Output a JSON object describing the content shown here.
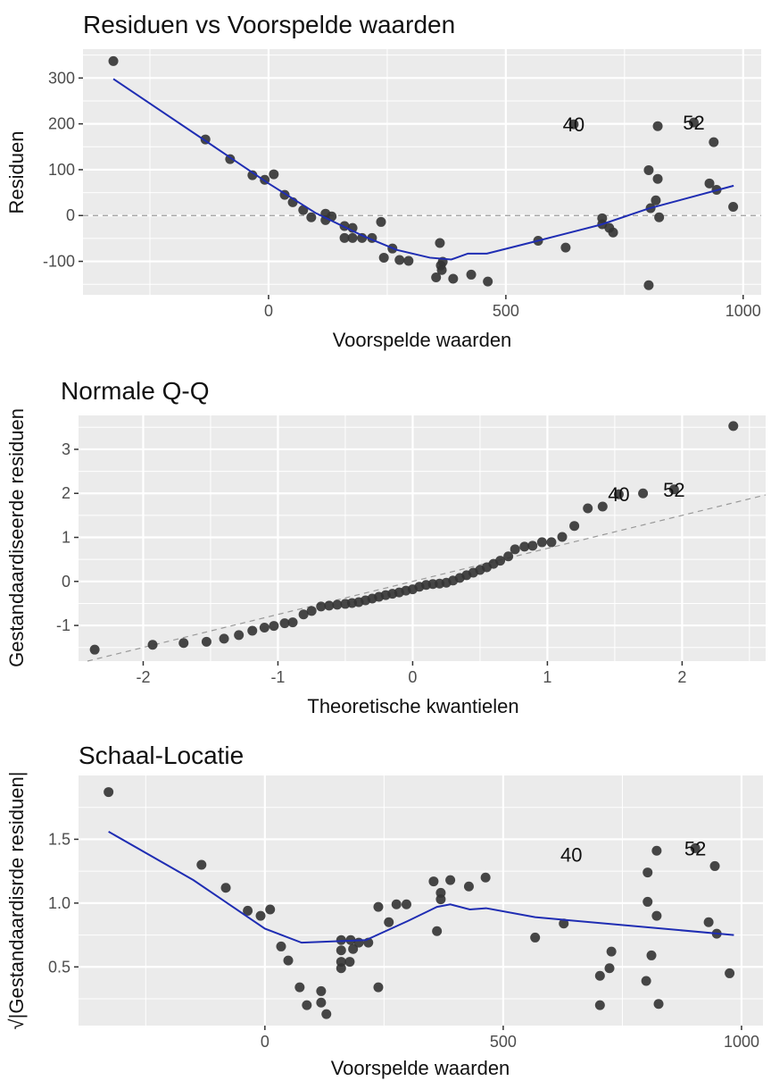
{
  "chart_data": [
    {
      "type": "scatter",
      "title": "Residuen vs Voorspelde waarden",
      "xlabel": "Voorspelde waarden",
      "ylabel": "Residuen",
      "xlim": [
        -391,
        1038
      ],
      "ylim": [
        -173,
        363
      ],
      "xticks": [
        0,
        500,
        1000
      ],
      "xtick_labels": [
        "0",
        "500",
        "1000"
      ],
      "yticks": [
        -100,
        0,
        100,
        200,
        300
      ],
      "ytick_labels": [
        "-100",
        "0",
        "100",
        "200",
        "300"
      ],
      "grid": true,
      "hline": {
        "y": 0,
        "style": "dashed"
      },
      "points": [
        [
          -327,
          337
        ],
        [
          -133,
          166
        ],
        [
          -81,
          123
        ],
        [
          -34,
          88
        ],
        [
          -8,
          78
        ],
        [
          11,
          90
        ],
        [
          34,
          45
        ],
        [
          51,
          29
        ],
        [
          73,
          12
        ],
        [
          90,
          -4
        ],
        [
          120,
          4
        ],
        [
          120,
          -10
        ],
        [
          133,
          -2
        ],
        [
          160,
          -23
        ],
        [
          160,
          -49
        ],
        [
          177,
          -27
        ],
        [
          177,
          -49
        ],
        [
          197,
          -49
        ],
        [
          218,
          -49
        ],
        [
          237,
          -14
        ],
        [
          243,
          -92
        ],
        [
          261,
          -72
        ],
        [
          276,
          -97
        ],
        [
          295,
          -99
        ],
        [
          353,
          -135
        ],
        [
          361,
          -60
        ],
        [
          363,
          -109
        ],
        [
          365,
          -119
        ],
        [
          367,
          -101
        ],
        [
          389,
          -138
        ],
        [
          427,
          -129
        ],
        [
          462,
          -144
        ],
        [
          568,
          -55
        ],
        [
          626,
          -70
        ],
        [
          643,
          199
        ],
        [
          703,
          -6
        ],
        [
          703,
          -19
        ],
        [
          718,
          -27
        ],
        [
          726,
          -37
        ],
        [
          801,
          99
        ],
        [
          801,
          -152
        ],
        [
          805,
          16
        ],
        [
          816,
          33
        ],
        [
          820,
          80
        ],
        [
          820,
          195
        ],
        [
          823,
          -4
        ],
        [
          896,
          203
        ],
        [
          929,
          70
        ],
        [
          938,
          160
        ],
        [
          944,
          56
        ],
        [
          979,
          19
        ]
      ],
      "smooth": [
        [
          -327,
          298
        ],
        [
          -133,
          163
        ],
        [
          0,
          70
        ],
        [
          100,
          5
        ],
        [
          200,
          -45
        ],
        [
          270,
          -75
        ],
        [
          340,
          -92
        ],
        [
          385,
          -96
        ],
        [
          420,
          -83
        ],
        [
          460,
          -83
        ],
        [
          560,
          -57
        ],
        [
          700,
          -20
        ],
        [
          800,
          15
        ],
        [
          980,
          65
        ]
      ],
      "annotations": [
        {
          "text": "40",
          "x": 643,
          "y": 199
        },
        {
          "text": "52",
          "x": 896,
          "y": 203
        }
      ]
    },
    {
      "type": "scatter",
      "title": "Normale Q-Q",
      "xlabel": "Theoretische kwantielen",
      "ylabel": "Gestandaardiseerde residuen",
      "xlim": [
        -2.48,
        2.62
      ],
      "ylim": [
        -1.81,
        3.77
      ],
      "xticks": [
        -2,
        -1,
        0,
        1,
        2
      ],
      "xtick_labels": [
        "-2",
        "-1",
        "0",
        "1",
        "2"
      ],
      "yticks": [
        -1,
        0,
        1,
        2,
        3
      ],
      "ytick_labels": [
        "-1",
        "0",
        "1",
        "2",
        "3"
      ],
      "grid": true,
      "refline": {
        "slope": 0.75,
        "intercept": 0,
        "style": "dashed"
      },
      "points": [
        [
          -2.36,
          -1.55
        ],
        [
          -1.93,
          -1.44
        ],
        [
          -1.7,
          -1.4
        ],
        [
          -1.53,
          -1.37
        ],
        [
          -1.4,
          -1.3
        ],
        [
          -1.29,
          -1.22
        ],
        [
          -1.19,
          -1.12
        ],
        [
          -1.1,
          -1.05
        ],
        [
          -1.03,
          -1.01
        ],
        [
          -0.95,
          -0.95
        ],
        [
          -0.89,
          -0.93
        ],
        [
          -0.81,
          -0.75
        ],
        [
          -0.75,
          -0.67
        ],
        [
          -0.68,
          -0.57
        ],
        [
          -0.62,
          -0.55
        ],
        [
          -0.56,
          -0.53
        ],
        [
          -0.5,
          -0.51
        ],
        [
          -0.45,
          -0.49
        ],
        [
          -0.4,
          -0.47
        ],
        [
          -0.35,
          -0.43
        ],
        [
          -0.3,
          -0.39
        ],
        [
          -0.25,
          -0.35
        ],
        [
          -0.2,
          -0.31
        ],
        [
          -0.15,
          -0.28
        ],
        [
          -0.1,
          -0.25
        ],
        [
          -0.05,
          -0.21
        ],
        [
          0.0,
          -0.18
        ],
        [
          0.05,
          -0.12
        ],
        [
          0.1,
          -0.08
        ],
        [
          0.15,
          -0.06
        ],
        [
          0.2,
          -0.05
        ],
        [
          0.25,
          -0.03
        ],
        [
          0.3,
          0.02
        ],
        [
          0.35,
          0.08
        ],
        [
          0.4,
          0.14
        ],
        [
          0.45,
          0.2
        ],
        [
          0.5,
          0.26
        ],
        [
          0.55,
          0.32
        ],
        [
          0.6,
          0.4
        ],
        [
          0.65,
          0.47
        ],
        [
          0.71,
          0.57
        ],
        [
          0.76,
          0.73
        ],
        [
          0.83,
          0.79
        ],
        [
          0.89,
          0.81
        ],
        [
          0.96,
          0.89
        ],
        [
          1.03,
          0.89
        ],
        [
          1.11,
          1.01
        ],
        [
          1.2,
          1.26
        ],
        [
          1.3,
          1.66
        ],
        [
          1.41,
          1.7
        ],
        [
          1.53,
          1.98
        ],
        [
          1.71,
          2.0
        ],
        [
          1.94,
          2.09
        ],
        [
          2.38,
          3.53
        ]
      ],
      "annotations": [
        {
          "text": "40",
          "x": 1.53,
          "y": 1.98
        },
        {
          "text": "52",
          "x": 1.94,
          "y": 2.09
        }
      ]
    },
    {
      "type": "scatter",
      "title": "Schaal-Locatie",
      "xlabel": "Voorspelde waarden",
      "ylabel": "√|Gestandaardisrde residuen|",
      "xlim": [
        -391,
        1045
      ],
      "ylim": [
        0.04,
        2.0
      ],
      "xticks": [
        0,
        500,
        1000
      ],
      "xtick_labels": [
        "0",
        "500",
        "1000"
      ],
      "yticks": [
        0.5,
        1.0,
        1.5
      ],
      "ytick_labels": [
        "0.5",
        "1.0",
        "1.5"
      ],
      "grid": true,
      "points": [
        [
          -328,
          1.87
        ],
        [
          -133,
          1.3
        ],
        [
          -82,
          1.12
        ],
        [
          -36,
          0.94
        ],
        [
          -9,
          0.9
        ],
        [
          11,
          0.95
        ],
        [
          34,
          0.66
        ],
        [
          49,
          0.55
        ],
        [
          73,
          0.34
        ],
        [
          88,
          0.2
        ],
        [
          118,
          0.31
        ],
        [
          118,
          0.22
        ],
        [
          129,
          0.13
        ],
        [
          160,
          0.71
        ],
        [
          160,
          0.63
        ],
        [
          160,
          0.54
        ],
        [
          160,
          0.49
        ],
        [
          180,
          0.71
        ],
        [
          185,
          0.64
        ],
        [
          178,
          0.54
        ],
        [
          197,
          0.69
        ],
        [
          217,
          0.69
        ],
        [
          238,
          0.34
        ],
        [
          238,
          0.97
        ],
        [
          260,
          0.85
        ],
        [
          276,
          0.99
        ],
        [
          297,
          0.99
        ],
        [
          354,
          1.17
        ],
        [
          361,
          0.78
        ],
        [
          369,
          1.08
        ],
        [
          369,
          1.03
        ],
        [
          389,
          1.18
        ],
        [
          428,
          1.13
        ],
        [
          463,
          1.2
        ],
        [
          567,
          0.73
        ],
        [
          627,
          0.84
        ],
        [
          703,
          0.43
        ],
        [
          703,
          0.2
        ],
        [
          723,
          0.49
        ],
        [
          727,
          0.62
        ],
        [
          800,
          0.39
        ],
        [
          803,
          1.01
        ],
        [
          803,
          1.24
        ],
        [
          811,
          0.59
        ],
        [
          822,
          1.41
        ],
        [
          822,
          0.9
        ],
        [
          826,
          0.21
        ],
        [
          903,
          1.43
        ],
        [
          931,
          0.85
        ],
        [
          944,
          1.29
        ],
        [
          948,
          0.76
        ],
        [
          975,
          0.45
        ]
      ],
      "smooth": [
        [
          -328,
          1.56
        ],
        [
          -150,
          1.18
        ],
        [
          0,
          0.8
        ],
        [
          77,
          0.69
        ],
        [
          212,
          0.71
        ],
        [
          300,
          0.86
        ],
        [
          361,
          0.97
        ],
        [
          389,
          0.99
        ],
        [
          430,
          0.95
        ],
        [
          464,
          0.96
        ],
        [
          567,
          0.89
        ],
        [
          624,
          0.87
        ],
        [
          984,
          0.75
        ]
      ],
      "annotations": [
        {
          "text": "40",
          "x": 643,
          "y": 1.38
        },
        {
          "text": "52",
          "x": 903,
          "y": 1.43
        }
      ]
    }
  ],
  "colors": {
    "panel_bg": "#ebebeb",
    "grid": "#ffffff",
    "points": "#333333",
    "smooth": "#1f2db3",
    "refline": "#999999"
  }
}
